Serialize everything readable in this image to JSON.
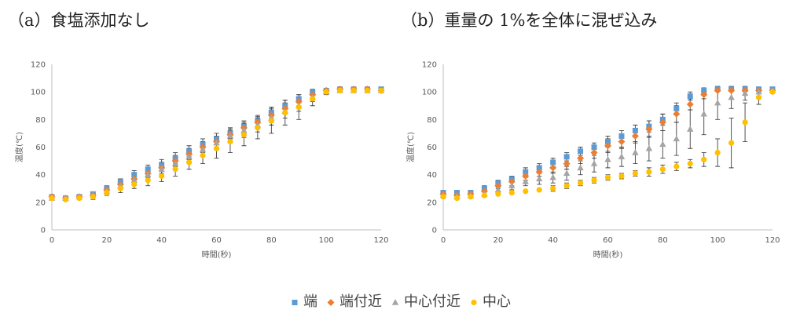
{
  "colors": {
    "edge": "#5B9BD5",
    "near_edge": "#ED7D31",
    "near_center": "#A5A5A5",
    "center": "#FFC000"
  },
  "legend": [
    {
      "label": "端",
      "marker": "square",
      "color": "#5B9BD5"
    },
    {
      "label": "端付近",
      "marker": "diamond",
      "color": "#ED7D31"
    },
    {
      "label": "中心付近",
      "marker": "triangle",
      "color": "#A5A5A5"
    },
    {
      "label": "中心",
      "marker": "circle",
      "color": "#FFC000"
    }
  ],
  "chart_data": [
    {
      "type": "scatter",
      "title": "（a）食塩添加なし",
      "xlabel": "時間(秒)",
      "ylabel": "温度(℃)",
      "xlim": [
        0,
        120
      ],
      "ylim": [
        0,
        120
      ],
      "xticks": [
        0,
        20,
        40,
        60,
        80,
        100,
        120
      ],
      "yticks": [
        0,
        20,
        40,
        60,
        80,
        100,
        120
      ],
      "grid": "none",
      "x": [
        0,
        5,
        10,
        15,
        20,
        25,
        30,
        35,
        40,
        45,
        50,
        55,
        60,
        65,
        70,
        75,
        80,
        85,
        90,
        95,
        100,
        105,
        110,
        115,
        120
      ],
      "series": [
        {
          "name": "端",
          "marker": "square",
          "color": "#5B9BD5",
          "values": [
            24,
            23,
            24,
            26,
            30,
            35,
            40,
            44,
            47,
            52,
            57,
            62,
            66,
            70,
            75,
            79,
            85,
            90,
            95,
            100,
            101,
            102,
            102,
            102,
            102
          ],
          "err": [
            1,
            1,
            1,
            1,
            2,
            2,
            3,
            3,
            4,
            4,
            4,
            4,
            4,
            4,
            4,
            4,
            4,
            4,
            3,
            2,
            1,
            1,
            1,
            1,
            1
          ]
        },
        {
          "name": "端付近",
          "marker": "diamond",
          "color": "#ED7D31",
          "values": [
            24,
            23,
            24,
            25,
            29,
            33,
            37,
            41,
            45,
            50,
            55,
            60,
            64,
            69,
            74,
            78,
            83,
            88,
            93,
            98,
            101,
            102,
            102,
            102,
            101
          ],
          "err": [
            1,
            1,
            1,
            1,
            2,
            2,
            3,
            3,
            4,
            4,
            4,
            4,
            4,
            4,
            4,
            4,
            4,
            4,
            3,
            2,
            1,
            1,
            1,
            1,
            1
          ]
        },
        {
          "name": "中心付近",
          "marker": "triangle",
          "color": "#A5A5A5",
          "values": [
            23,
            23,
            24,
            25,
            28,
            32,
            36,
            40,
            44,
            48,
            53,
            58,
            63,
            68,
            72,
            76,
            81,
            86,
            90,
            96,
            100,
            101,
            101,
            101,
            101
          ],
          "err": [
            1,
            1,
            1,
            1,
            2,
            2,
            3,
            3,
            4,
            4,
            4,
            4,
            5,
            5,
            5,
            5,
            5,
            5,
            4,
            3,
            1,
            1,
            1,
            1,
            1
          ]
        },
        {
          "name": "中心",
          "marker": "circle",
          "color": "#FFC000",
          "values": [
            23,
            22,
            23,
            24,
            27,
            30,
            33,
            36,
            39,
            44,
            49,
            54,
            59,
            64,
            69,
            74,
            79,
            85,
            89,
            95,
            100,
            101,
            101,
            101,
            101
          ],
          "err": [
            1,
            1,
            1,
            2,
            2,
            3,
            3,
            4,
            4,
            5,
            5,
            6,
            7,
            8,
            8,
            8,
            9,
            9,
            9,
            5,
            2,
            1,
            1,
            1,
            1
          ]
        }
      ]
    },
    {
      "type": "scatter",
      "title": "（b）重量の 1%を全体に混ぜ込み",
      "xlabel": "時間(秒)",
      "ylabel": "温度(℃)",
      "xlim": [
        0,
        120
      ],
      "ylim": [
        0,
        120
      ],
      "xticks": [
        0,
        20,
        40,
        60,
        80,
        100,
        120
      ],
      "yticks": [
        0,
        20,
        40,
        60,
        80,
        100,
        120
      ],
      "grid": "none",
      "x": [
        0,
        5,
        10,
        15,
        20,
        25,
        30,
        35,
        40,
        45,
        50,
        55,
        60,
        65,
        70,
        75,
        80,
        85,
        90,
        95,
        100,
        105,
        110,
        115,
        120
      ],
      "series": [
        {
          "name": "端",
          "marker": "square",
          "color": "#5B9BD5",
          "values": [
            27,
            27,
            27,
            30,
            34,
            37,
            42,
            45,
            49,
            53,
            57,
            60,
            64,
            68,
            72,
            75,
            80,
            88,
            97,
            101,
            102,
            102,
            102,
            102,
            102
          ],
          "err": [
            1,
            1,
            1,
            2,
            2,
            2,
            3,
            3,
            3,
            3,
            3,
            3,
            4,
            4,
            4,
            4,
            4,
            4,
            3,
            2,
            1,
            1,
            1,
            1,
            1
          ]
        },
        {
          "name": "端付近",
          "marker": "diamond",
          "color": "#ED7D31",
          "values": [
            26,
            25,
            26,
            28,
            32,
            35,
            39,
            42,
            45,
            48,
            52,
            56,
            61,
            64,
            68,
            73,
            78,
            84,
            91,
            98,
            101,
            101,
            101,
            101,
            101
          ],
          "err": [
            1,
            1,
            1,
            2,
            2,
            3,
            3,
            3,
            4,
            4,
            4,
            4,
            5,
            5,
            5,
            6,
            6,
            6,
            4,
            3,
            1,
            1,
            1,
            1,
            1
          ]
        },
        {
          "name": "中心付近",
          "marker": "triangle",
          "color": "#A5A5A5",
          "values": [
            25,
            24,
            25,
            26,
            29,
            32,
            35,
            37,
            38,
            41,
            45,
            48,
            51,
            53,
            56,
            59,
            62,
            66,
            73,
            84,
            92,
            96,
            99,
            100,
            101
          ],
          "err": [
            1,
            1,
            1,
            2,
            2,
            3,
            3,
            4,
            4,
            5,
            5,
            6,
            6,
            7,
            8,
            9,
            10,
            12,
            14,
            15,
            12,
            8,
            5,
            3,
            1
          ]
        },
        {
          "name": "中心",
          "marker": "circle",
          "color": "#FFC000",
          "values": [
            24,
            23,
            24,
            25,
            26,
            27,
            28,
            29,
            30,
            32,
            34,
            36,
            38,
            39,
            41,
            42,
            44,
            46,
            48,
            51,
            56,
            63,
            78,
            96,
            100
          ],
          "err": [
            1,
            1,
            1,
            1,
            1,
            1,
            1,
            1,
            2,
            2,
            2,
            2,
            2,
            2,
            2,
            3,
            3,
            3,
            3,
            5,
            10,
            18,
            14,
            5,
            1
          ]
        }
      ]
    }
  ]
}
